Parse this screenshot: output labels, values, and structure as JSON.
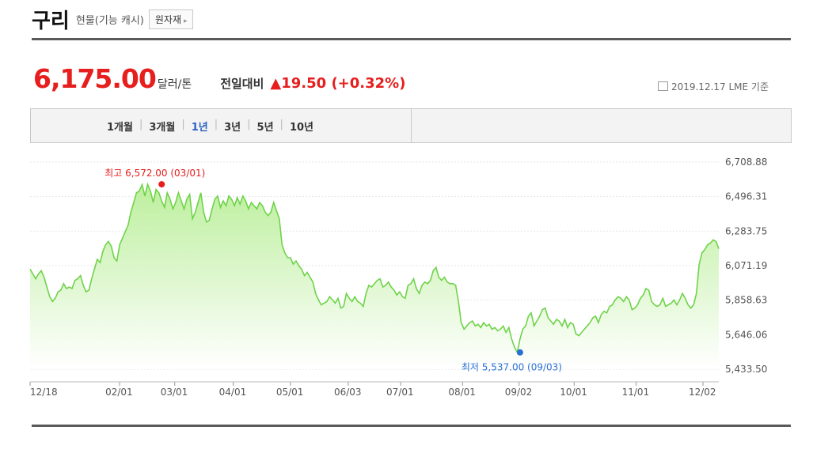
{
  "header": {
    "name": "구리",
    "subtitle": "현물(기능 캐시)",
    "button_label": "원자재",
    "button_arrow": "▸"
  },
  "price": {
    "value": "6,175.00",
    "unit": "달러/톤",
    "change_label": "전일대비",
    "change": "▲19.50 (+0.32%)"
  },
  "date_info": "2019.12.17 LME 기준",
  "tabs": [
    {
      "label": "1개월",
      "active": false
    },
    {
      "label": "3개월",
      "active": false
    },
    {
      "label": "1년",
      "active": true
    },
    {
      "label": "3년",
      "active": false
    },
    {
      "label": "5년",
      "active": false
    },
    {
      "label": "10년",
      "active": false
    }
  ],
  "colors": {
    "line": "#6fd34a",
    "fill": "#b9ee98",
    "high": "#e61e1e",
    "low": "#2b6fd6",
    "grid": "#e6e6e6"
  },
  "chart_data": {
    "type": "area",
    "y_ticks": [
      "6,708.88",
      "6,496.31",
      "6,283.75",
      "6,071.19",
      "5,858.63",
      "5,646.06",
      "5,433.50"
    ],
    "ylim": [
      5433.5,
      6708.88
    ],
    "x_ticks": [
      "12/18",
      "02/01",
      "03/01",
      "04/01",
      "05/01",
      "06/03",
      "07/01",
      "08/01",
      "09/02",
      "10/01",
      "11/01",
      "12/02"
    ],
    "high_label": "최고 6,572.00 (03/01)",
    "low_label": "최저 5,537.00 (09/03)",
    "high": {
      "x": 47,
      "y": 6572
    },
    "low": {
      "x": 175,
      "y": 5537
    },
    "series": [
      {
        "values": [
          6050,
          6020,
          5990,
          6020,
          6040,
          6000,
          5940,
          5880,
          5850,
          5870,
          5910,
          5920,
          5960,
          5930,
          5940,
          5930,
          5980,
          5990,
          6010,
          5950,
          5910,
          5920,
          5990,
          6050,
          6110,
          6090,
          6160,
          6200,
          6220,
          6190,
          6120,
          6100,
          6200,
          6240,
          6280,
          6320,
          6400,
          6460,
          6520,
          6530,
          6570,
          6500,
          6572,
          6530,
          6460,
          6540,
          6520,
          6470,
          6430,
          6520,
          6480,
          6420,
          6460,
          6520,
          6470,
          6420,
          6480,
          6510,
          6360,
          6400,
          6460,
          6520,
          6400,
          6340,
          6350,
          6420,
          6480,
          6500,
          6430,
          6470,
          6440,
          6500,
          6480,
          6440,
          6490,
          6450,
          6500,
          6470,
          6420,
          6460,
          6440,
          6420,
          6460,
          6440,
          6400,
          6380,
          6400,
          6460,
          6410,
          6360,
          6200,
          6150,
          6120,
          6120,
          6080,
          6100,
          6070,
          6050,
          6010,
          6030,
          6000,
          5970,
          5900,
          5860,
          5830,
          5840,
          5850,
          5880,
          5860,
          5840,
          5870,
          5810,
          5820,
          5900,
          5870,
          5850,
          5880,
          5850,
          5840,
          5820,
          5900,
          5950,
          5940,
          5960,
          5980,
          5990,
          5940,
          5950,
          5970,
          5940,
          5920,
          5890,
          5910,
          5880,
          5870,
          5950,
          5960,
          5990,
          5930,
          5900,
          5950,
          5970,
          5960,
          5980,
          6040,
          6060,
          6000,
          5980,
          6000,
          5970,
          5960,
          5960,
          5950,
          5850,
          5720,
          5680,
          5700,
          5720,
          5730,
          5700,
          5710,
          5690,
          5720,
          5700,
          5710,
          5680,
          5690,
          5670,
          5680,
          5700,
          5660,
          5690,
          5620,
          5570,
          5537,
          5620,
          5680,
          5700,
          5760,
          5780,
          5700,
          5730,
          5760,
          5800,
          5810,
          5750,
          5730,
          5710,
          5740,
          5730,
          5700,
          5740,
          5690,
          5720,
          5710,
          5650,
          5640,
          5660,
          5680,
          5700,
          5720,
          5750,
          5760,
          5720,
          5770,
          5790,
          5780,
          5820,
          5830,
          5860,
          5880,
          5870,
          5850,
          5880,
          5860,
          5800,
          5810,
          5830,
          5870,
          5890,
          5930,
          5920,
          5850,
          5830,
          5820,
          5830,
          5870,
          5820,
          5830,
          5840,
          5860,
          5830,
          5860,
          5900,
          5870,
          5830,
          5810,
          5830,
          5900,
          6080,
          6150,
          6170,
          6200,
          6210,
          6230,
          6220,
          6175
        ]
      }
    ]
  }
}
